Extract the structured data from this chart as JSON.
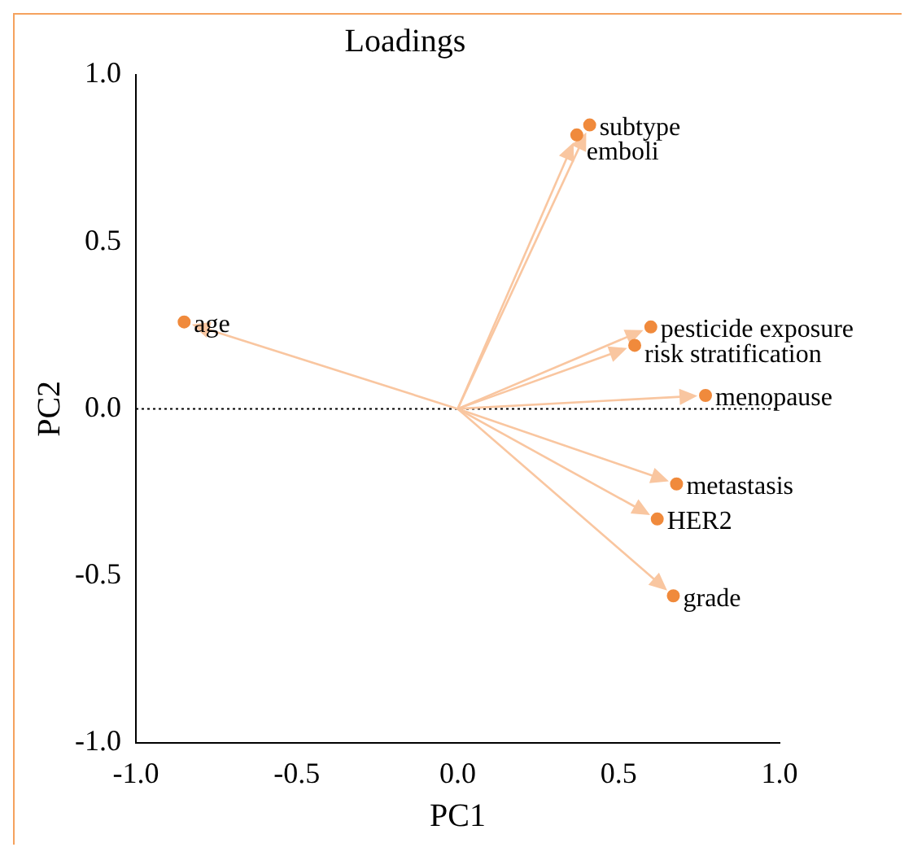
{
  "chart_data": {
    "type": "scatter",
    "title": "Loadings",
    "xlabel": "PC1",
    "ylabel": "PC2",
    "xlim": [
      -1,
      1
    ],
    "ylim": [
      -1,
      1
    ],
    "xticks": [
      {
        "value": -1,
        "label": "-1.0"
      },
      {
        "value": -0.5,
        "label": "-0.5"
      },
      {
        "value": 0,
        "label": "0.0"
      },
      {
        "value": 0.5,
        "label": "0.5"
      },
      {
        "value": 1,
        "label": "1.0"
      }
    ],
    "yticks": [
      {
        "value": -1,
        "label": "-1.0"
      },
      {
        "value": -0.5,
        "label": "-0.5"
      },
      {
        "value": 0,
        "label": "0.0"
      },
      {
        "value": 0.5,
        "label": "0.5"
      },
      {
        "value": 1,
        "label": "1.0"
      }
    ],
    "grid": false,
    "legend": false,
    "marker": "circle",
    "ref_lines": [
      {
        "axis": "y",
        "value": 0,
        "line_style": "dotted",
        "color": "#000000"
      }
    ],
    "series": [
      {
        "name": "subtype",
        "color": "#f08a3c",
        "x": [
          0.41
        ],
        "values": [
          0.85
        ]
      },
      {
        "name": "emboli",
        "color": "#f08a3c",
        "x": [
          0.37
        ],
        "values": [
          0.82
        ]
      },
      {
        "name": "age",
        "color": "#f08a3c",
        "x": [
          -0.85
        ],
        "values": [
          0.26
        ]
      },
      {
        "name": "pesticide exposure",
        "color": "#f08a3c",
        "x": [
          0.6
        ],
        "values": [
          0.245
        ]
      },
      {
        "name": "risk stratification",
        "color": "#f08a3c",
        "x": [
          0.55
        ],
        "values": [
          0.19
        ]
      },
      {
        "name": "menopause",
        "color": "#f08a3c",
        "x": [
          0.77
        ],
        "values": [
          0.04
        ]
      },
      {
        "name": "metastasis",
        "color": "#f08a3c",
        "x": [
          0.68
        ],
        "values": [
          -0.225
        ]
      },
      {
        "name": "HER2",
        "color": "#f08a3c",
        "x": [
          0.62
        ],
        "values": [
          -0.33
        ]
      },
      {
        "name": "grade",
        "color": "#f08a3c",
        "x": [
          0.67
        ],
        "values": [
          -0.56
        ]
      }
    ]
  }
}
